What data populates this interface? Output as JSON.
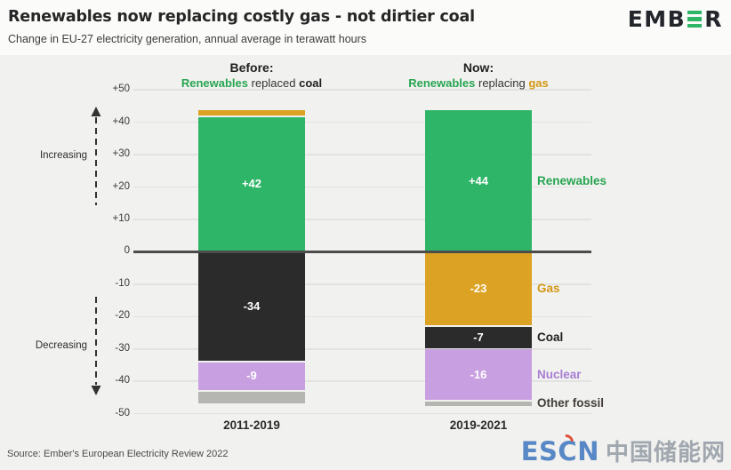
{
  "header": {
    "title": "Renewables now replacing costly gas - not dirtier coal",
    "subtitle": "Change in EU-27 electricity generation, annual average in terawatt hours",
    "brand": {
      "pre": "EMB",
      "post": "R"
    }
  },
  "colors": {
    "brand_text": "#23262b",
    "brand_green": "#2eb566",
    "renewables_text": "#27a551",
    "gas_text": "#d29714",
    "coal_text": "#1e1e1e",
    "watermark_blue": "#4d80c3",
    "watermark_red": "#df4430",
    "watermark_gray": "#9aa1aa"
  },
  "columns": {
    "before": {
      "heading": "Before:",
      "series": "Renewables",
      "verb": " replaced ",
      "object": "coal"
    },
    "now": {
      "heading": "Now:",
      "series": "Renewables",
      "verb": " replacing ",
      "object": "gas"
    }
  },
  "annotations": {
    "increasing": "Increasing",
    "decreasing": "Decreasing"
  },
  "chart_data": {
    "type": "bar",
    "stacked": true,
    "title": "Change in EU-27 electricity generation, annual average in terawatt hours",
    "unit": "TWh",
    "ylim": [
      -50,
      50
    ],
    "grid": true,
    "legend_position": "right",
    "ytick_values": [
      50,
      40,
      30,
      20,
      10,
      0,
      -10,
      -20,
      -30,
      -40,
      -50
    ],
    "ytick_labels": [
      "+50",
      "+40",
      "+30",
      "+20",
      "+10",
      "0",
      "-10",
      "-20",
      "-30",
      "-40",
      "-50"
    ],
    "categories": [
      "2011-2019",
      "2019-2021"
    ],
    "bars": [
      {
        "category": "2011-2019",
        "segments": [
          {
            "name": "Renewables",
            "value": 42,
            "label": "+42",
            "color": "#2eb567"
          },
          {
            "name": "Gas",
            "value": 2,
            "label": "",
            "color": "#dba223"
          },
          {
            "name": "Coal",
            "value": -34,
            "label": "-34",
            "color": "#2b2b2b"
          },
          {
            "name": "Nuclear",
            "value": -9,
            "label": "-9",
            "color": "#c89fe0"
          },
          {
            "name": "Other fossil",
            "value": -4,
            "label": "",
            "color": "#b5b5b2"
          }
        ]
      },
      {
        "category": "2019-2021",
        "segments": [
          {
            "name": "Renewables",
            "value": 44,
            "label": "+44",
            "color": "#2eb567"
          },
          {
            "name": "Gas",
            "value": -23,
            "label": "-23",
            "color": "#dba223"
          },
          {
            "name": "Coal",
            "value": -7,
            "label": "-7",
            "color": "#2b2b2b"
          },
          {
            "name": "Nuclear",
            "value": -16,
            "label": "-16",
            "color": "#c89fe0"
          },
          {
            "name": "Other fossil",
            "value": -2,
            "label": "",
            "color": "#b5b5b2"
          }
        ]
      }
    ],
    "legend": [
      {
        "label": "Renewables",
        "color": "#27a551",
        "bar": 1,
        "segment": 0
      },
      {
        "label": "Gas",
        "color": "#d29714",
        "bar": 1,
        "segment": 1
      },
      {
        "label": "Coal",
        "color": "#1e1e1e",
        "bar": 1,
        "segment": 2
      },
      {
        "label": "Nuclear",
        "color": "#a87ed2",
        "bar": 1,
        "segment": 3
      },
      {
        "label": "Other fossil",
        "color": "#423d38",
        "bar": 1,
        "segment": 4
      }
    ]
  },
  "footer": {
    "source": "Source: Ember's European Electricity Review 2022"
  },
  "watermark": {
    "latin_pre": "ES",
    "latin_c": "C",
    "latin_post": "N",
    "cjk": "中国储能网"
  }
}
